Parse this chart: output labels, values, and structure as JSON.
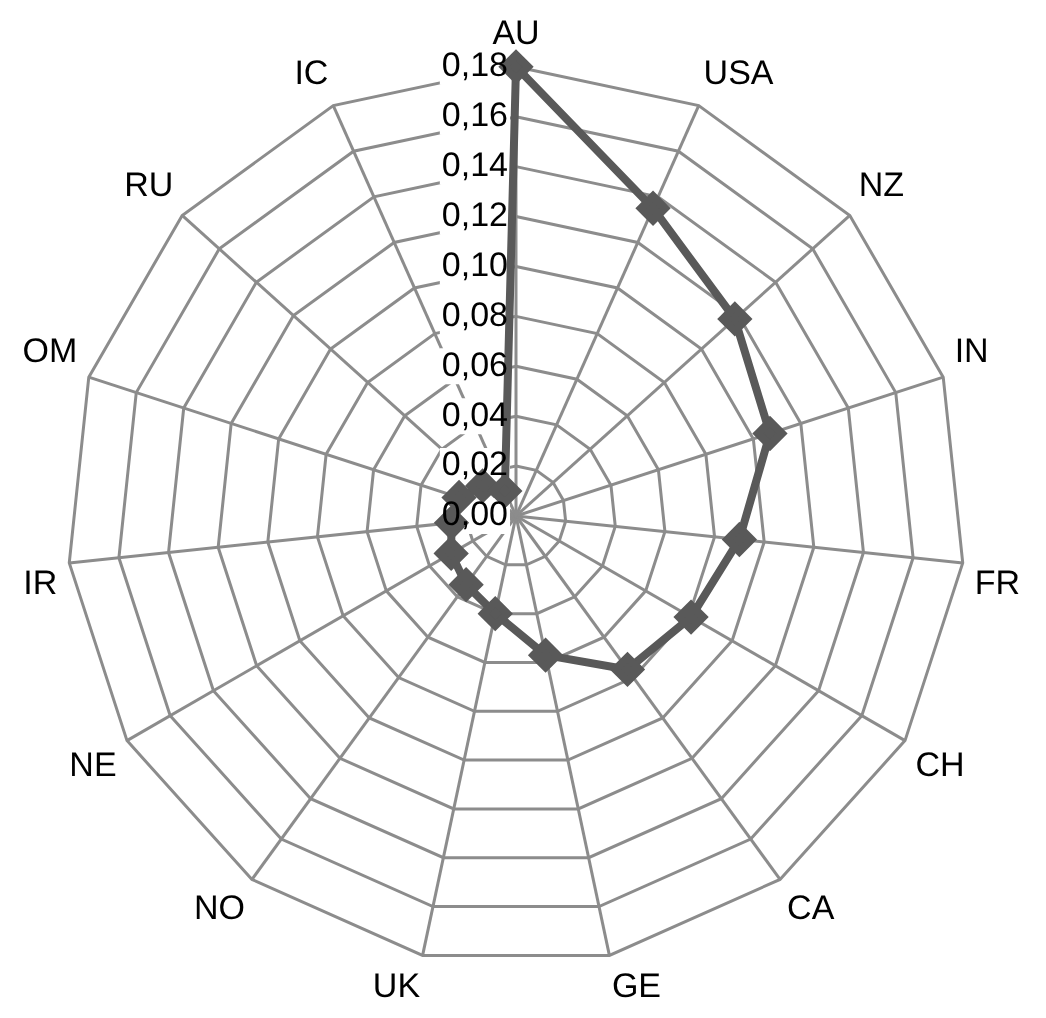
{
  "chart_data": {
    "type": "radar",
    "categories": [
      "AU",
      "USA",
      "NZ",
      "IN",
      "FR",
      "CH",
      "CA",
      "GE",
      "UK",
      "NO",
      "NE",
      "IR",
      "OM",
      "RU",
      "IC"
    ],
    "series": [
      {
        "color": "#595959",
        "values": [
          0.18,
          0.135,
          0.118,
          0.107,
          0.09,
          0.081,
          0.076,
          0.057,
          0.04,
          0.034,
          0.03,
          0.026,
          0.024,
          0.018,
          0.011
        ]
      }
    ],
    "ylim": [
      0,
      0.18
    ],
    "yticks": [
      {
        "value": 0,
        "label": "0,00"
      },
      {
        "value": 0.02,
        "label": "0,02"
      },
      {
        "value": 0.04,
        "label": "0,04"
      },
      {
        "value": 0.06,
        "label": "0,06"
      },
      {
        "value": 0.08,
        "label": "0,08"
      },
      {
        "value": 0.1,
        "label": "0,10"
      },
      {
        "value": 0.12,
        "label": "0,12"
      },
      {
        "value": 0.14,
        "label": "0,14"
      },
      {
        "value": 0.16,
        "label": "0,16"
      },
      {
        "value": 0.18,
        "label": "0,18"
      }
    ],
    "grid": true,
    "marker": "diamond",
    "legend": false
  }
}
